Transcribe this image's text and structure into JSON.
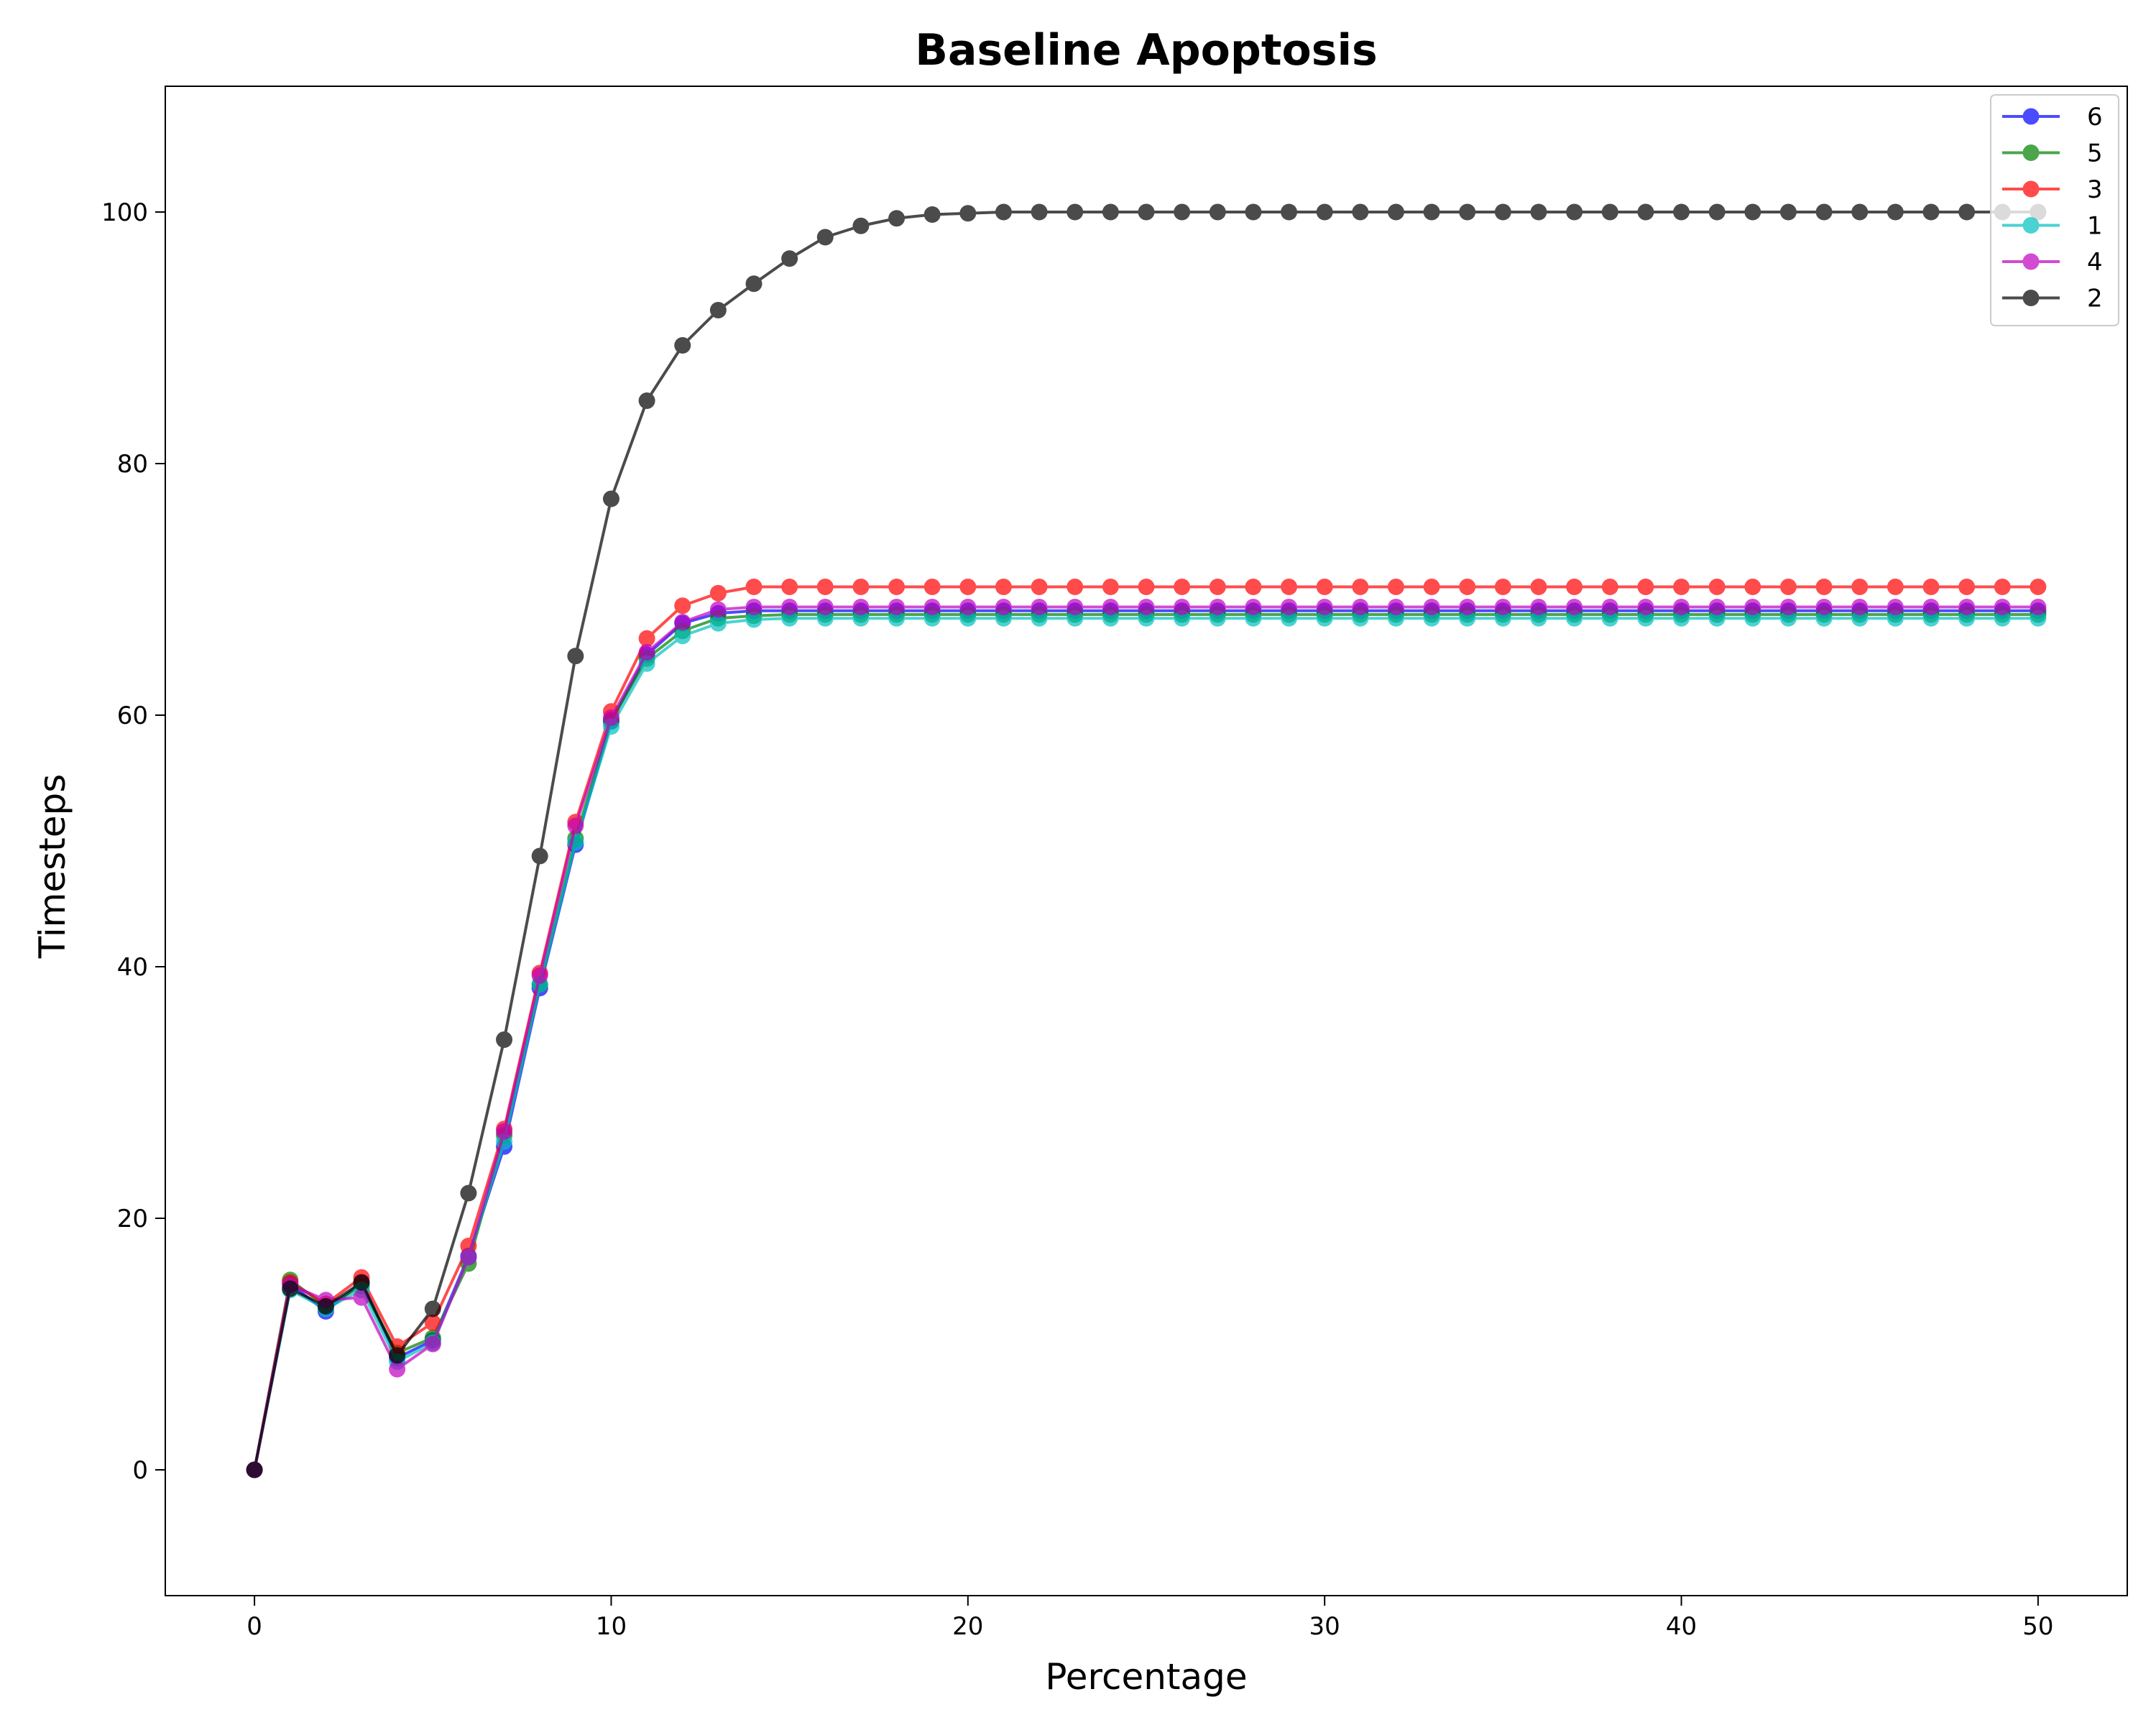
{
  "chart_data": {
    "type": "line",
    "title": "Baseline Apoptosis",
    "xlabel": "Percentage",
    "ylabel": "Timesteps",
    "xlim": [
      -2.5,
      52.5
    ],
    "ylim": [
      -10,
      110
    ],
    "xticks": [
      0,
      10,
      20,
      30,
      40,
      50
    ],
    "yticks": [
      0,
      20,
      40,
      60,
      80,
      100
    ],
    "grid": false,
    "legend_position": "top-right",
    "x": [
      0,
      1,
      2,
      3,
      4,
      5,
      6,
      7,
      8,
      9,
      10,
      11,
      12,
      13,
      14,
      15,
      16,
      17,
      18,
      19,
      20,
      21,
      22,
      23,
      24,
      25,
      26,
      27,
      28,
      29,
      30,
      31,
      32,
      33,
      34,
      35,
      36,
      37,
      38,
      39,
      40,
      41,
      42,
      43,
      44,
      45,
      46,
      47,
      48,
      49,
      50
    ],
    "series": [
      {
        "name": "6",
        "color": "#0000ff",
        "values": [
          0,
          14.8,
          12.6,
          14.9,
          8.9,
          10.3,
          17.0,
          25.7,
          38.3,
          49.7,
          59.5,
          64.8,
          67.3,
          68.1,
          68.3,
          68.3,
          68.3,
          68.3,
          68.3,
          68.3,
          68.3,
          68.3,
          68.3,
          68.3,
          68.3,
          68.3,
          68.3,
          68.3,
          68.3,
          68.3,
          68.3,
          68.3,
          68.3,
          68.3,
          68.3,
          68.3,
          68.3,
          68.3,
          68.3,
          68.3,
          68.3,
          68.3,
          68.3,
          68.3,
          68.3,
          68.3,
          68.3,
          68.3,
          68.3,
          68.3,
          68.3
        ]
      },
      {
        "name": "5",
        "color": "#008000",
        "values": [
          0,
          15.1,
          13.0,
          14.6,
          9.3,
          10.5,
          16.4,
          26.6,
          38.6,
          50.2,
          59.6,
          64.5,
          66.7,
          67.7,
          67.9,
          68.0,
          68.0,
          68.0,
          68.0,
          68.0,
          68.0,
          68.0,
          68.0,
          68.0,
          68.0,
          68.0,
          68.0,
          68.0,
          68.0,
          68.0,
          68.0,
          68.0,
          68.0,
          68.0,
          68.0,
          68.0,
          68.0,
          68.0,
          68.0,
          68.0,
          68.0,
          68.0,
          68.0,
          68.0,
          68.0,
          68.0,
          68.0,
          68.0,
          68.0,
          68.0,
          68.0
        ]
      },
      {
        "name": "3",
        "color": "#ff0000",
        "values": [
          0,
          14.9,
          13.2,
          15.3,
          9.8,
          11.7,
          17.8,
          27.1,
          39.5,
          51.5,
          60.3,
          66.1,
          68.7,
          69.7,
          70.2,
          70.2,
          70.2,
          70.2,
          70.2,
          70.2,
          70.2,
          70.2,
          70.2,
          70.2,
          70.2,
          70.2,
          70.2,
          70.2,
          70.2,
          70.2,
          70.2,
          70.2,
          70.2,
          70.2,
          70.2,
          70.2,
          70.2,
          70.2,
          70.2,
          70.2,
          70.2,
          70.2,
          70.2,
          70.2,
          70.2,
          70.2,
          70.2,
          70.2,
          70.2,
          70.2,
          70.2
        ]
      },
      {
        "name": "1",
        "color": "#00bfbf",
        "values": [
          0,
          14.3,
          12.8,
          14.3,
          8.6,
          10.1,
          16.9,
          26.1,
          38.6,
          49.9,
          59.1,
          64.1,
          66.3,
          67.3,
          67.6,
          67.7,
          67.7,
          67.7,
          67.7,
          67.7,
          67.7,
          67.7,
          67.7,
          67.7,
          67.7,
          67.7,
          67.7,
          67.7,
          67.7,
          67.7,
          67.7,
          67.7,
          67.7,
          67.7,
          67.7,
          67.7,
          67.7,
          67.7,
          67.7,
          67.7,
          67.7,
          67.7,
          67.7,
          67.7,
          67.7,
          67.7,
          67.7,
          67.7,
          67.7,
          67.7,
          67.7
        ]
      },
      {
        "name": "4",
        "color": "#bf00bf",
        "values": [
          0,
          14.7,
          13.5,
          13.7,
          8.0,
          10.0,
          16.9,
          26.9,
          39.3,
          51.2,
          59.8,
          65.0,
          67.4,
          68.4,
          68.6,
          68.6,
          68.6,
          68.6,
          68.6,
          68.6,
          68.6,
          68.6,
          68.6,
          68.6,
          68.6,
          68.6,
          68.6,
          68.6,
          68.6,
          68.6,
          68.6,
          68.6,
          68.6,
          68.6,
          68.6,
          68.6,
          68.6,
          68.6,
          68.6,
          68.6,
          68.6,
          68.6,
          68.6,
          68.6,
          68.6,
          68.6,
          68.6,
          68.6,
          68.6,
          68.6,
          68.6
        ]
      },
      {
        "name": "2",
        "color": "#000000",
        "values": [
          0,
          14.4,
          13.0,
          14.9,
          9.1,
          12.8,
          22.0,
          34.2,
          48.8,
          64.7,
          77.2,
          85.0,
          89.4,
          92.2,
          94.3,
          96.3,
          98.0,
          98.9,
          99.5,
          99.8,
          99.9,
          100,
          100,
          100,
          100,
          100,
          100,
          100,
          100,
          100,
          100,
          100,
          100,
          100,
          100,
          100,
          100,
          100,
          100,
          100,
          100,
          100,
          100,
          100,
          100,
          100,
          100,
          100,
          100,
          100,
          100
        ]
      }
    ]
  }
}
